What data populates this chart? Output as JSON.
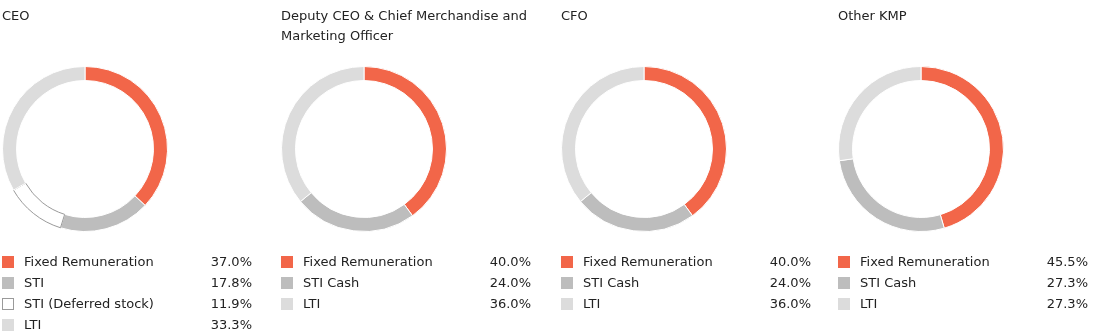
{
  "chart_data": [
    {
      "type": "donut",
      "title": "CEO",
      "categories": [
        "Fixed Remuneration",
        "STI",
        "STI (Deferred stock)",
        "LTI"
      ],
      "values": [
        37.0,
        17.8,
        11.9,
        33.3
      ],
      "colors": [
        "#f26649",
        "#bdbdbd",
        "#ffffff",
        "#dcdcdc"
      ],
      "legend": "bottom",
      "value_labels": [
        "37.0%",
        "17.8%",
        "11.9%",
        "33.3%"
      ]
    },
    {
      "type": "donut",
      "title": "Deputy CEO & Chief Merchandise and Marketing Officer",
      "categories": [
        "Fixed Remuneration",
        "STI Cash",
        "LTI"
      ],
      "values": [
        40.0,
        24.0,
        36.0
      ],
      "colors": [
        "#f26649",
        "#bdbdbd",
        "#dcdcdc"
      ],
      "legend": "bottom",
      "value_labels": [
        "40.0%",
        "24.0%",
        "36.0%"
      ]
    },
    {
      "type": "donut",
      "title": "CFO",
      "categories": [
        "Fixed Remuneration",
        "STI Cash",
        "LTI"
      ],
      "values": [
        40.0,
        24.0,
        36.0
      ],
      "colors": [
        "#f26649",
        "#bdbdbd",
        "#dcdcdc"
      ],
      "legend": "bottom",
      "value_labels": [
        "40.0%",
        "24.0%",
        "36.0%"
      ]
    },
    {
      "type": "donut",
      "title": "Other KMP",
      "categories": [
        "Fixed Remuneration",
        "STI Cash",
        "LTI"
      ],
      "values": [
        45.5,
        27.3,
        27.3
      ],
      "colors": [
        "#f26649",
        "#bdbdbd",
        "#dcdcdc"
      ],
      "legend": "bottom",
      "value_labels": [
        "45.5%",
        "27.3%",
        "27.3%"
      ]
    }
  ]
}
